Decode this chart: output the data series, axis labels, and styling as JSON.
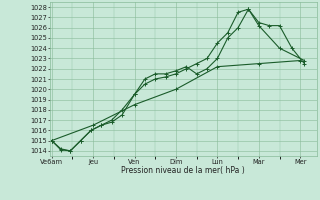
{
  "background_color": "#c8e8d8",
  "grid_color": "#88bb99",
  "line_color": "#1a5c2a",
  "xlabel_text": "Pression niveau de la mer( hPa )",
  "x_labels": [
    "Ve6am",
    "Jeu",
    "Ven",
    "Dim",
    "Lun",
    "Mar",
    "Mer"
  ],
  "x_positions": [
    0,
    1,
    2,
    3,
    4,
    5,
    6
  ],
  "ylim": [
    1013.5,
    1028.5
  ],
  "yticks": [
    1014,
    1015,
    1016,
    1017,
    1018,
    1019,
    1020,
    1021,
    1022,
    1023,
    1024,
    1025,
    1026,
    1027,
    1028
  ],
  "xlim": [
    -0.05,
    6.4
  ],
  "line1_x": [
    0,
    0.22,
    0.45,
    0.7,
    0.95,
    1.2,
    1.45,
    1.7,
    2.0,
    2.25,
    2.5,
    2.75,
    3.0,
    3.25,
    3.5,
    3.75,
    4.0,
    4.25,
    4.5,
    4.75,
    5.0,
    5.25,
    5.5,
    5.8,
    6.1
  ],
  "line1_y": [
    1015.0,
    1014.2,
    1014.0,
    1015.0,
    1016.0,
    1016.5,
    1017.0,
    1018.0,
    1019.5,
    1020.5,
    1021.0,
    1021.2,
    1021.5,
    1022.0,
    1022.5,
    1023.0,
    1024.5,
    1025.5,
    1027.5,
    1027.8,
    1026.5,
    1026.2,
    1026.2,
    1024.0,
    1022.5
  ],
  "line2_x": [
    0,
    0.22,
    0.45,
    0.7,
    0.95,
    1.2,
    1.45,
    1.7,
    2.0,
    2.25,
    2.5,
    2.75,
    3.0,
    3.25,
    3.5,
    3.75,
    4.0,
    4.25,
    4.5,
    4.75,
    5.0,
    5.5,
    6.1
  ],
  "line2_y": [
    1015.0,
    1014.1,
    1014.0,
    1015.0,
    1016.0,
    1016.5,
    1016.8,
    1017.5,
    1019.5,
    1021.0,
    1021.5,
    1021.5,
    1021.8,
    1022.2,
    1021.5,
    1022.0,
    1023.0,
    1025.0,
    1026.0,
    1027.8,
    1026.2,
    1024.0,
    1022.8
  ],
  "line3_x": [
    0,
    1,
    2,
    3,
    4,
    5,
    6
  ],
  "line3_y": [
    1015.0,
    1016.5,
    1018.5,
    1020.0,
    1022.2,
    1022.5,
    1022.8
  ]
}
